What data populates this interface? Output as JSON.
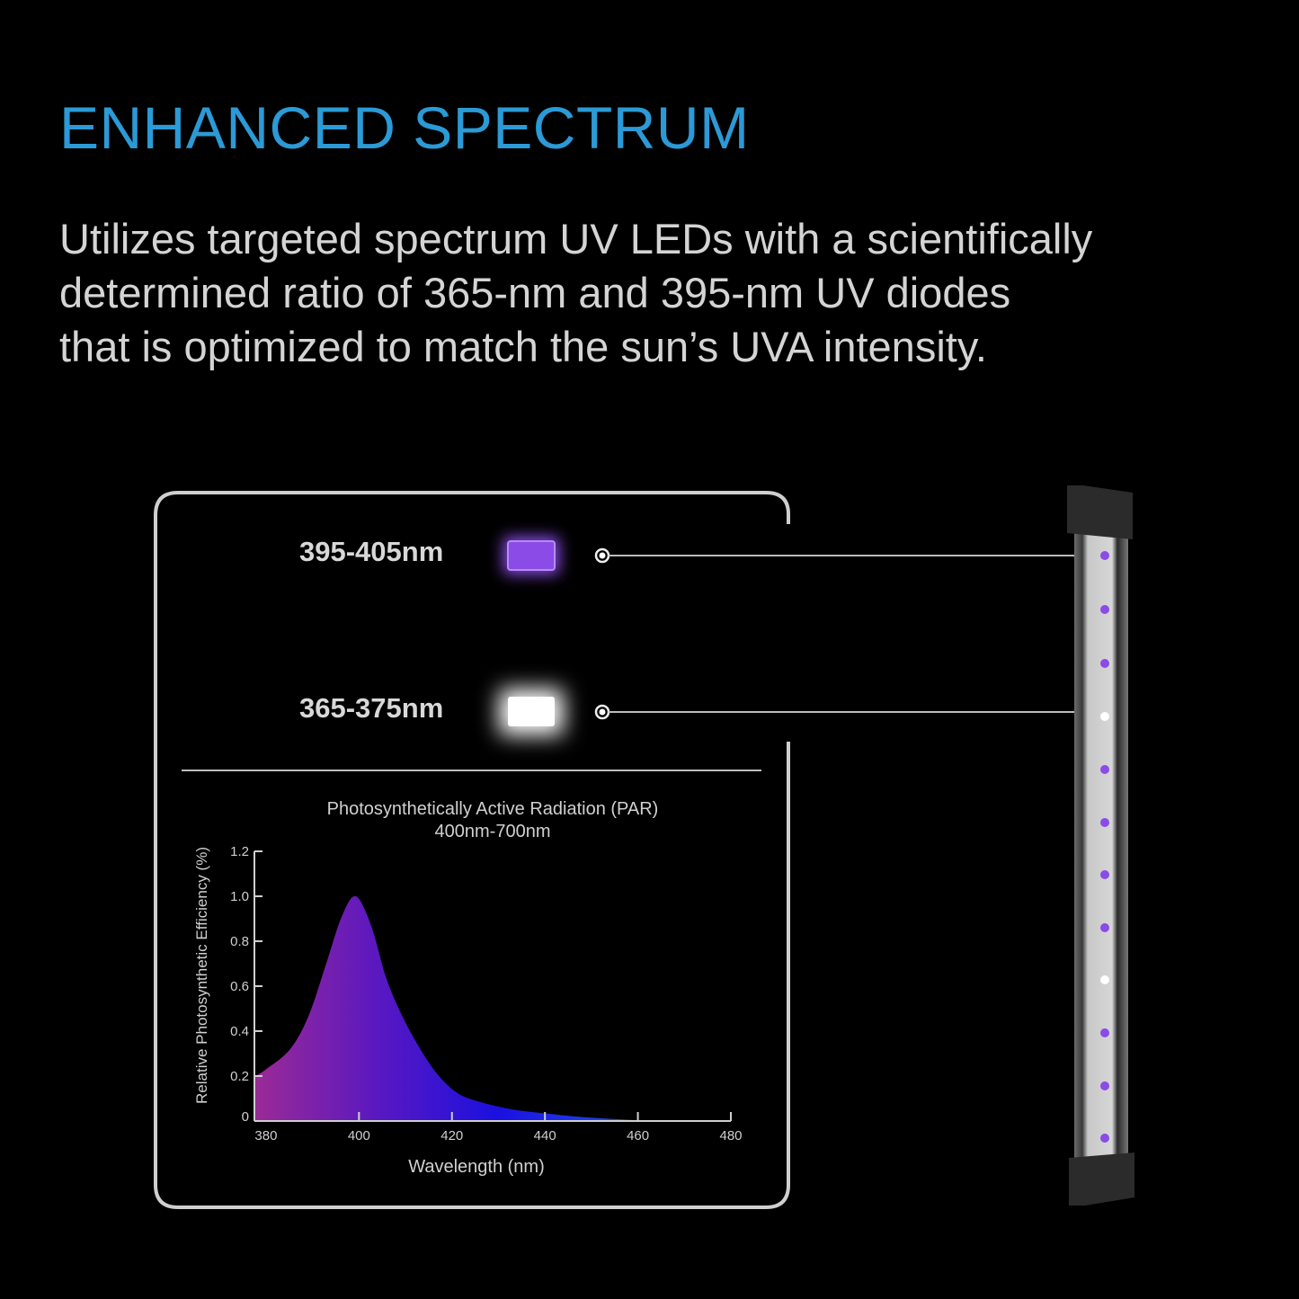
{
  "header": {
    "title": "ENHANCED SPECTRUM",
    "description_lines": [
      "Utilizes targeted spectrum UV LEDs with a scientifically",
      "determined ratio of 365-nm and 395-nm UV diodes",
      "that is optimized to match the sun’s UVA intensity."
    ]
  },
  "legend": {
    "items": [
      {
        "label": "395-405nm",
        "color": "#8a4be6"
      },
      {
        "label": "365-375nm",
        "color": "#ffffff"
      }
    ]
  },
  "colors": {
    "title": "#2b9ad6",
    "border": "#cfcfcf",
    "led_uv": "#8a4be6",
    "led_white": "#ffffff"
  },
  "chart_data": {
    "type": "area",
    "title": "Photosynthetically Active Radiation (PAR)",
    "subtitle": "400nm-700nm",
    "xlabel": "Wavelength (nm)",
    "ylabel": "Relative Photosynthetic Efficiency (%)",
    "xlim": [
      377.5,
      480
    ],
    "ylim": [
      0,
      1.2
    ],
    "xticks": [
      "380",
      "400",
      "420",
      "440",
      "460",
      "480"
    ],
    "yticks": [
      "0",
      "0.2",
      "0.4",
      "0.6",
      "0.8",
      "1.0",
      "1.2"
    ],
    "grid": false,
    "fill_gradient": [
      "#9b2a96",
      "#5a18c0",
      "#1a10e0",
      "#1f5cf0"
    ],
    "x": [
      377.7,
      380,
      385.2,
      389.2,
      393.1,
      396.3,
      399.3,
      402.6,
      405.8,
      409,
      412.9,
      416.8,
      420.8,
      424.7,
      432.6,
      440.5,
      448.5,
      460.3,
      465
    ],
    "y": [
      0.2,
      0.23,
      0.32,
      0.47,
      0.71,
      0.91,
      1.0,
      0.87,
      0.64,
      0.48,
      0.33,
      0.21,
      0.13,
      0.093,
      0.053,
      0.033,
      0.017,
      0.003,
      0
    ]
  }
}
